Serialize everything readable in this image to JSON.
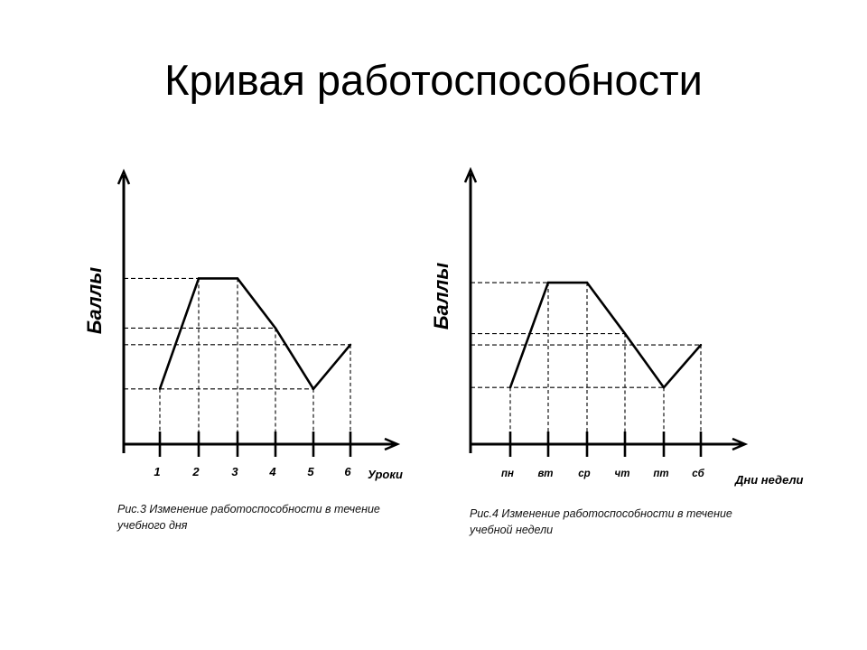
{
  "title": "Кривая работоспособности",
  "chart_data": [
    {
      "type": "line",
      "ylabel": "Баллы",
      "xlabel": "Уроки",
      "categories": [
        "1",
        "2",
        "3",
        "4",
        "5",
        "6"
      ],
      "values": [
        2,
        6,
        6,
        4.2,
        2,
        3.6
      ],
      "ylim": [
        0,
        7
      ],
      "caption": "Рис.3 Изменение работоспособности в течение учебного дня",
      "grid": "dashed reference lines"
    },
    {
      "type": "line",
      "ylabel": "Баллы",
      "xlabel": "Дни недели",
      "categories": [
        "пн",
        "вт",
        "ср",
        "чт",
        "пт",
        "сб"
      ],
      "values": [
        2,
        5.7,
        5.7,
        3.9,
        2,
        3.5
      ],
      "ylim": [
        0,
        7
      ],
      "caption": "Рис.4 Изменение работоспособности в течение учебной недели",
      "grid": "dashed reference lines"
    }
  ]
}
